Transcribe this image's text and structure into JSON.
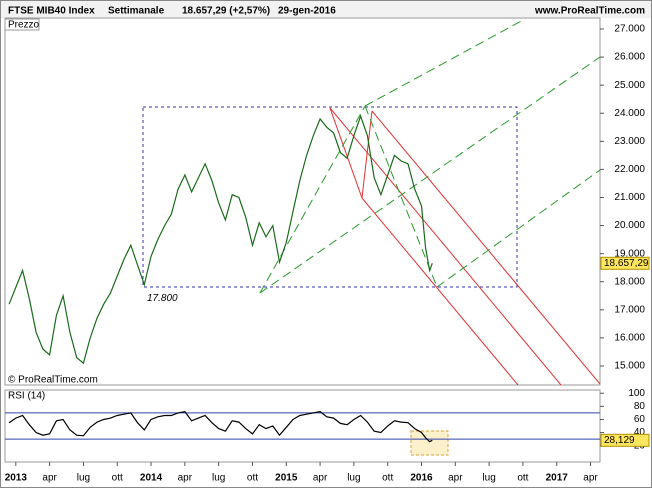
{
  "header": {
    "instrument": "FTSE MIB40 Index",
    "period": "Settimanale",
    "last": "18.657,29 (+2,57%)",
    "date": "29-gen-2016",
    "site": "www.ProRealTime.com"
  },
  "chart_data": [
    {
      "type": "line",
      "panel_label": "Prezzo",
      "copyright": "© ProRealTime.com",
      "color": "#1a6b1a",
      "x": [
        2012.95,
        2013.0,
        2013.05,
        2013.1,
        2013.15,
        2013.2,
        2013.25,
        2013.3,
        2013.35,
        2013.4,
        2013.45,
        2013.5,
        2013.55,
        2013.6,
        2013.65,
        2013.7,
        2013.75,
        2013.8,
        2013.85,
        2013.9,
        2013.95,
        2014.0,
        2014.05,
        2014.1,
        2014.15,
        2014.2,
        2014.25,
        2014.3,
        2014.35,
        2014.4,
        2014.45,
        2014.5,
        2014.55,
        2014.6,
        2014.65,
        2014.7,
        2014.75,
        2014.8,
        2014.85,
        2014.9,
        2014.95,
        2015.0,
        2015.05,
        2015.1,
        2015.15,
        2015.2,
        2015.25,
        2015.3,
        2015.35,
        2015.4,
        2015.45,
        2015.5,
        2015.55,
        2015.6,
        2015.65,
        2015.7,
        2015.75,
        2015.8,
        2015.85,
        2015.9,
        2015.95,
        2016.0,
        2016.03,
        2016.06,
        2016.08
      ],
      "values": [
        17200,
        17800,
        18400,
        17400,
        16200,
        15600,
        15400,
        16800,
        17500,
        16200,
        15300,
        15100,
        16000,
        16700,
        17200,
        17600,
        18200,
        18800,
        19300,
        18600,
        17900,
        18900,
        19500,
        20000,
        20400,
        21300,
        21800,
        21200,
        21700,
        22200,
        21600,
        20800,
        20200,
        21100,
        21000,
        20300,
        19300,
        20100,
        19600,
        20000,
        18700,
        19400,
        20500,
        21600,
        22500,
        23200,
        23800,
        23500,
        23300,
        22600,
        22400,
        23200,
        23900,
        23200,
        21700,
        21100,
        21800,
        22500,
        22300,
        22200,
        21300,
        20700,
        19200,
        18400,
        18657.29
      ],
      "xlim": [
        2012.92,
        2017.32
      ],
      "ylim": [
        14323,
        27392
      ],
      "yticks": [
        {
          "value": 15000,
          "label": "15.000"
        },
        {
          "value": 16000,
          "label": "16.000"
        },
        {
          "value": 17000,
          "label": "17.000"
        },
        {
          "value": 18000,
          "label": "18.000"
        },
        {
          "value": 19000,
          "label": "19.000"
        },
        {
          "value": 20000,
          "label": "20.000"
        },
        {
          "value": 21000,
          "label": "21.000"
        },
        {
          "value": 22000,
          "label": "22.000"
        },
        {
          "value": 23000,
          "label": "23.000"
        },
        {
          "value": 24000,
          "label": "24.000"
        },
        {
          "value": 25000,
          "label": "25.000"
        },
        {
          "value": 26000,
          "label": "26.000"
        },
        {
          "value": 27000,
          "label": "27.000"
        }
      ],
      "last_tag": {
        "value": 18657.29,
        "label": "18.657,29"
      },
      "annotation": {
        "value": 17800,
        "label": "17.800"
      }
    },
    {
      "type": "line",
      "panel_label": "RSI (14)",
      "color": "#000000",
      "x": [
        2012.95,
        2013.0,
        2013.05,
        2013.1,
        2013.15,
        2013.2,
        2013.25,
        2013.3,
        2013.35,
        2013.4,
        2013.45,
        2013.5,
        2013.55,
        2013.6,
        2013.65,
        2013.7,
        2013.75,
        2013.8,
        2013.85,
        2013.9,
        2013.95,
        2014.0,
        2014.05,
        2014.1,
        2014.15,
        2014.2,
        2014.25,
        2014.3,
        2014.35,
        2014.4,
        2014.45,
        2014.5,
        2014.55,
        2014.6,
        2014.65,
        2014.7,
        2014.75,
        2014.8,
        2014.85,
        2014.9,
        2014.95,
        2015.0,
        2015.05,
        2015.1,
        2015.15,
        2015.2,
        2015.25,
        2015.3,
        2015.35,
        2015.4,
        2015.45,
        2015.5,
        2015.55,
        2015.6,
        2015.65,
        2015.7,
        2015.75,
        2015.8,
        2015.85,
        2015.9,
        2015.95,
        2016.0,
        2016.03,
        2016.06,
        2016.08
      ],
      "values": [
        55,
        62,
        66,
        52,
        40,
        36,
        38,
        58,
        60,
        44,
        36,
        35,
        48,
        56,
        60,
        62,
        66,
        68,
        70,
        55,
        44,
        60,
        64,
        66,
        66,
        70,
        72,
        58,
        62,
        66,
        55,
        46,
        42,
        58,
        56,
        46,
        38,
        52,
        46,
        50,
        36,
        48,
        60,
        66,
        68,
        70,
        72,
        64,
        62,
        54,
        52,
        60,
        66,
        56,
        42,
        40,
        50,
        58,
        56,
        55,
        46,
        40,
        32,
        26,
        28.129
      ],
      "xlim": [
        2012.92,
        2017.32
      ],
      "ylim": [
        -5,
        105
      ],
      "yticks": [
        20,
        40,
        60,
        80,
        100
      ],
      "levels": [
        70,
        30
      ],
      "last_tag": {
        "value": 28.129,
        "label": "28,129"
      },
      "xticks": [
        {
          "value": 2013,
          "label": "2013"
        },
        {
          "value": 2013.25,
          "label": "apr"
        },
        {
          "value": 2013.5,
          "label": "lug"
        },
        {
          "value": 2013.75,
          "label": "ott"
        },
        {
          "value": 2014,
          "label": "2014"
        },
        {
          "value": 2014.25,
          "label": "apr"
        },
        {
          "value": 2014.5,
          "label": "lug"
        },
        {
          "value": 2014.75,
          "label": "ott"
        },
        {
          "value": 2015,
          "label": "2015"
        },
        {
          "value": 2015.25,
          "label": "apr"
        },
        {
          "value": 2015.5,
          "label": "lug"
        },
        {
          "value": 2015.75,
          "label": "ott"
        },
        {
          "value": 2016,
          "label": "2016"
        },
        {
          "value": 2016.25,
          "label": "apr"
        },
        {
          "value": 2016.5,
          "label": "lug"
        },
        {
          "value": 2016.75,
          "label": "ott"
        },
        {
          "value": 2017,
          "label": "2017"
        },
        {
          "value": 2017.25,
          "label": "apr"
        }
      ]
    }
  ]
}
